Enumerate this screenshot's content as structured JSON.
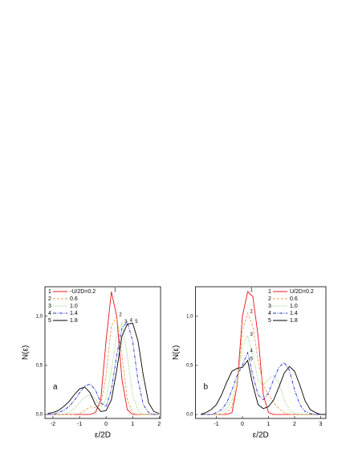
{
  "chart_data": [
    {
      "type": "line",
      "panel_label": "a",
      "x_label": "ε/2D",
      "y_label": "N(ε)",
      "legend": "upper left",
      "xlim": [
        -2.3,
        2.05
      ],
      "ylim": [
        -0.04,
        1.3
      ],
      "xticks": [
        -2,
        -1,
        0,
        1,
        2
      ],
      "yticks": [
        {
          "value": 0,
          "label": "0,0"
        },
        {
          "value": 0.5,
          "label": "0,5"
        },
        {
          "value": 1,
          "label": "1,0"
        }
      ],
      "x": [
        -2.2,
        -2,
        -1.8,
        -1.6,
        -1.4,
        -1.2,
        -1,
        -0.8,
        -0.6,
        -0.4,
        -0.2,
        0,
        0.2,
        0.4,
        0.6,
        0.8,
        1,
        1.2,
        1.4,
        1.6,
        1.8,
        2
      ],
      "series": [
        {
          "label": "1",
          "name": "-U/2D=0.2",
          "color": "#e8141c",
          "style": "solid",
          "values": [
            0,
            0,
            0,
            0,
            0,
            0,
            0,
            0,
            0,
            0.02,
            0.15,
            0.75,
            1.25,
            1.0,
            0.35,
            0.05,
            0,
            0,
            0,
            0,
            0,
            0
          ]
        },
        {
          "label": "2",
          "name": "0.6",
          "color": "#f29a4a",
          "style": "dash",
          "values": [
            0,
            0,
            0,
            0,
            0,
            0,
            0.01,
            0.04,
            0.08,
            0.07,
            0.1,
            0.4,
            0.9,
            1.0,
            0.6,
            0.15,
            0.02,
            0,
            0,
            0,
            0,
            0
          ]
        },
        {
          "label": "3",
          "name": "1.0",
          "color": "#6fcf5c",
          "style": "dot",
          "values": [
            0,
            0,
            0,
            0,
            0.02,
            0.06,
            0.12,
            0.18,
            0.2,
            0.16,
            0.08,
            0.15,
            0.45,
            0.8,
            0.93,
            0.6,
            0.2,
            0.04,
            0,
            0,
            0,
            0
          ]
        },
        {
          "label": "4",
          "name": "1.4",
          "color": "#1f2fd0",
          "style": "dashdot",
          "values": [
            0,
            0,
            0.02,
            0.04,
            0.08,
            0.14,
            0.22,
            0.29,
            0.31,
            0.25,
            0.12,
            0.08,
            0.25,
            0.6,
            0.88,
            0.94,
            0.75,
            0.35,
            0.1,
            0.02,
            0,
            0
          ]
        },
        {
          "label": "5",
          "name": "1.8",
          "color": "#000000",
          "style": "solid",
          "values": [
            0.01,
            0.02,
            0.04,
            0.08,
            0.13,
            0.2,
            0.26,
            0.28,
            0.22,
            0.1,
            0.03,
            0.04,
            0.15,
            0.45,
            0.8,
            0.92,
            0.93,
            0.75,
            0.4,
            0.12,
            0.03,
            0.01
          ]
        }
      ]
    },
    {
      "type": "line",
      "panel_label": "b",
      "x_label": "ε/2D",
      "y_label": "N(ε)",
      "legend": "upper right",
      "xlim": [
        -1.8,
        3.2
      ],
      "ylim": [
        -0.04,
        1.3
      ],
      "xticks": [
        -1,
        0,
        1,
        2,
        3
      ],
      "yticks": [
        {
          "value": 0,
          "label": "0,0"
        },
        {
          "value": 0.5,
          "label": "0,5"
        },
        {
          "value": 1,
          "label": "1,0"
        }
      ],
      "x": [
        -1.6,
        -1.4,
        -1.2,
        -1,
        -0.8,
        -0.6,
        -0.4,
        -0.2,
        0,
        0.2,
        0.4,
        0.6,
        0.8,
        1,
        1.2,
        1.4,
        1.6,
        1.8,
        2,
        2.2,
        2.4,
        2.6,
        2.8,
        3,
        3.2
      ],
      "series": [
        {
          "label": "1",
          "name": "U/2D=0.2",
          "color": "#e8141c",
          "style": "solid",
          "values": [
            0,
            0,
            0,
            0,
            0,
            0,
            0.02,
            0.3,
            1.0,
            1.25,
            1.2,
            0.8,
            0.2,
            0.02,
            0,
            0,
            0,
            0,
            0,
            0,
            0,
            0,
            0,
            0,
            0
          ]
        },
        {
          "label": "2",
          "name": "0.6",
          "color": "#f29a4a",
          "style": "dash",
          "values": [
            0,
            0,
            0,
            0,
            0,
            0.02,
            0.08,
            0.3,
            0.85,
            1.03,
            0.9,
            0.55,
            0.3,
            0.2,
            0.12,
            0.06,
            0.02,
            0,
            0,
            0,
            0,
            0,
            0,
            0,
            0
          ]
        },
        {
          "label": "3",
          "name": "1.0",
          "color": "#6fcf5c",
          "style": "dot",
          "values": [
            0,
            0,
            0,
            0,
            0.02,
            0.06,
            0.15,
            0.35,
            0.7,
            0.8,
            0.6,
            0.35,
            0.3,
            0.36,
            0.4,
            0.32,
            0.15,
            0.05,
            0.01,
            0,
            0,
            0,
            0,
            0,
            0
          ]
        },
        {
          "label": "4",
          "name": "1.4",
          "color": "#1f2fd0",
          "style": "dashdot",
          "values": [
            0,
            0,
            0,
            0.02,
            0.05,
            0.12,
            0.25,
            0.4,
            0.5,
            0.63,
            0.4,
            0.2,
            0.15,
            0.22,
            0.36,
            0.48,
            0.53,
            0.45,
            0.25,
            0.1,
            0.03,
            0.01,
            0,
            0,
            0
          ]
        },
        {
          "label": "5",
          "name": "1.8",
          "color": "#000000",
          "style": "solid",
          "values": [
            0,
            0.02,
            0.05,
            0.1,
            0.2,
            0.33,
            0.44,
            0.47,
            0.48,
            0.55,
            0.3,
            0.1,
            0.06,
            0.08,
            0.15,
            0.28,
            0.42,
            0.49,
            0.44,
            0.3,
            0.14,
            0.05,
            0.02,
            0,
            0
          ]
        }
      ]
    }
  ]
}
